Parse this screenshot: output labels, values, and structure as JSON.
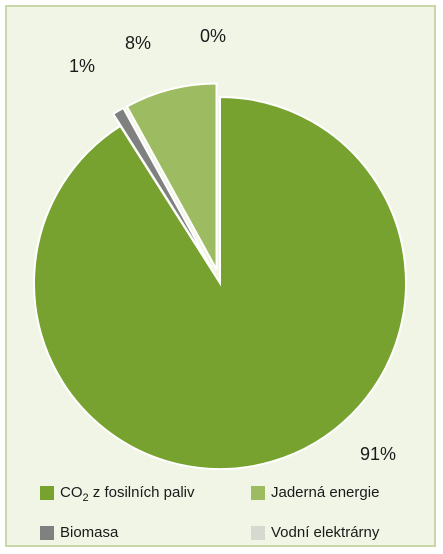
{
  "chart_data": {
    "type": "pie",
    "exploded": true,
    "legend_position": "bottom",
    "slices": [
      {
        "name": "CO2 z fosilních paliv",
        "name_main": "CO",
        "name_sub": "2",
        "name_rest": " z fosilních paliv",
        "value": 91,
        "label": "91%",
        "color": "#77a22f"
      },
      {
        "name": "Biomasa",
        "value": 1,
        "label": "1%",
        "color": "#7f8080"
      },
      {
        "name": "Jaderná energie",
        "value": 8,
        "label": "8%",
        "color": "#9dbb61"
      },
      {
        "name": "Vodní elektrárny",
        "value": 0,
        "label": "0%",
        "color": "#d5d9d0"
      }
    ]
  }
}
